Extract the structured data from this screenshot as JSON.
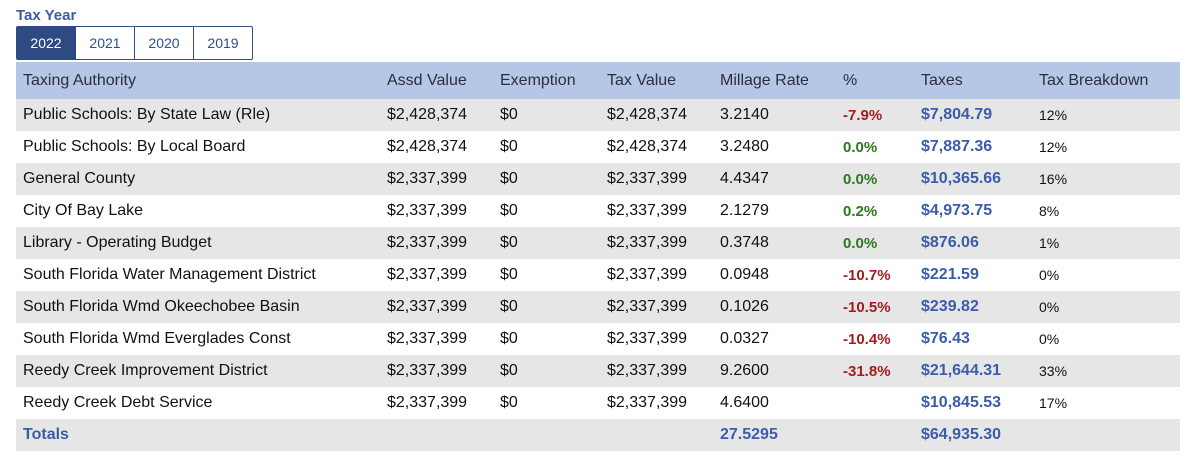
{
  "tax_year_label": "Tax Year",
  "years": [
    {
      "label": "2022",
      "active": true
    },
    {
      "label": "2021",
      "active": false
    },
    {
      "label": "2020",
      "active": false
    },
    {
      "label": "2019",
      "active": false
    }
  ],
  "table": {
    "headers": {
      "authority": "Taxing Authority",
      "assd": "Assd Value",
      "exemption": "Exemption",
      "tax_value": "Tax Value",
      "millage": "Millage Rate",
      "pct": "%",
      "taxes": "Taxes",
      "breakdown": "Tax Breakdown"
    },
    "rows": [
      {
        "authority": "Public Schools: By State Law (Rle)",
        "assd": "$2,428,374",
        "exemption": "$0",
        "tax_value": "$2,428,374",
        "millage": "3.2140",
        "pct": "-7.9%",
        "pct_sign": "neg",
        "taxes": "$7,804.79",
        "breakdown": "12%"
      },
      {
        "authority": "Public Schools: By Local Board",
        "assd": "$2,428,374",
        "exemption": "$0",
        "tax_value": "$2,428,374",
        "millage": "3.2480",
        "pct": "0.0%",
        "pct_sign": "pos",
        "taxes": "$7,887.36",
        "breakdown": "12%"
      },
      {
        "authority": "General County",
        "assd": "$2,337,399",
        "exemption": "$0",
        "tax_value": "$2,337,399",
        "millage": "4.4347",
        "pct": "0.0%",
        "pct_sign": "pos",
        "taxes": "$10,365.66",
        "breakdown": "16%"
      },
      {
        "authority": "City Of Bay Lake",
        "assd": "$2,337,399",
        "exemption": "$0",
        "tax_value": "$2,337,399",
        "millage": "2.1279",
        "pct": "0.2%",
        "pct_sign": "pos",
        "taxes": "$4,973.75",
        "breakdown": "8%"
      },
      {
        "authority": "Library - Operating Budget",
        "assd": "$2,337,399",
        "exemption": "$0",
        "tax_value": "$2,337,399",
        "millage": "0.3748",
        "pct": "0.0%",
        "pct_sign": "pos",
        "taxes": "$876.06",
        "breakdown": "1%"
      },
      {
        "authority": "South Florida Water Management District",
        "assd": "$2,337,399",
        "exemption": "$0",
        "tax_value": "$2,337,399",
        "millage": "0.0948",
        "pct": "-10.7%",
        "pct_sign": "neg",
        "taxes": "$221.59",
        "breakdown": "0%"
      },
      {
        "authority": "South Florida Wmd Okeechobee Basin",
        "assd": "$2,337,399",
        "exemption": "$0",
        "tax_value": "$2,337,399",
        "millage": "0.1026",
        "pct": "-10.5%",
        "pct_sign": "neg",
        "taxes": "$239.82",
        "breakdown": "0%"
      },
      {
        "authority": "South Florida Wmd Everglades Const",
        "assd": "$2,337,399",
        "exemption": "$0",
        "tax_value": "$2,337,399",
        "millage": "0.0327",
        "pct": "-10.4%",
        "pct_sign": "neg",
        "taxes": "$76.43",
        "breakdown": "0%"
      },
      {
        "authority": "Reedy Creek Improvement District",
        "assd": "$2,337,399",
        "exemption": "$0",
        "tax_value": "$2,337,399",
        "millage": "9.2600",
        "pct": "-31.8%",
        "pct_sign": "neg",
        "taxes": "$21,644.31",
        "breakdown": "33%"
      },
      {
        "authority": "Reedy Creek Debt Service",
        "assd": "$2,337,399",
        "exemption": "$0",
        "tax_value": "$2,337,399",
        "millage": "4.6400",
        "pct": "",
        "pct_sign": "none",
        "taxes": "$10,845.53",
        "breakdown": "17%"
      }
    ],
    "totals": {
      "label": "Totals",
      "millage": "27.5295",
      "taxes": "$64,935.30"
    }
  },
  "colors": {
    "header_bg": "#b6c6e6",
    "accent_blue": "#3b5ca8",
    "negative_red": "#a61c1c",
    "positive_green": "#2a7a1c",
    "active_tab": "#2f4a82"
  }
}
